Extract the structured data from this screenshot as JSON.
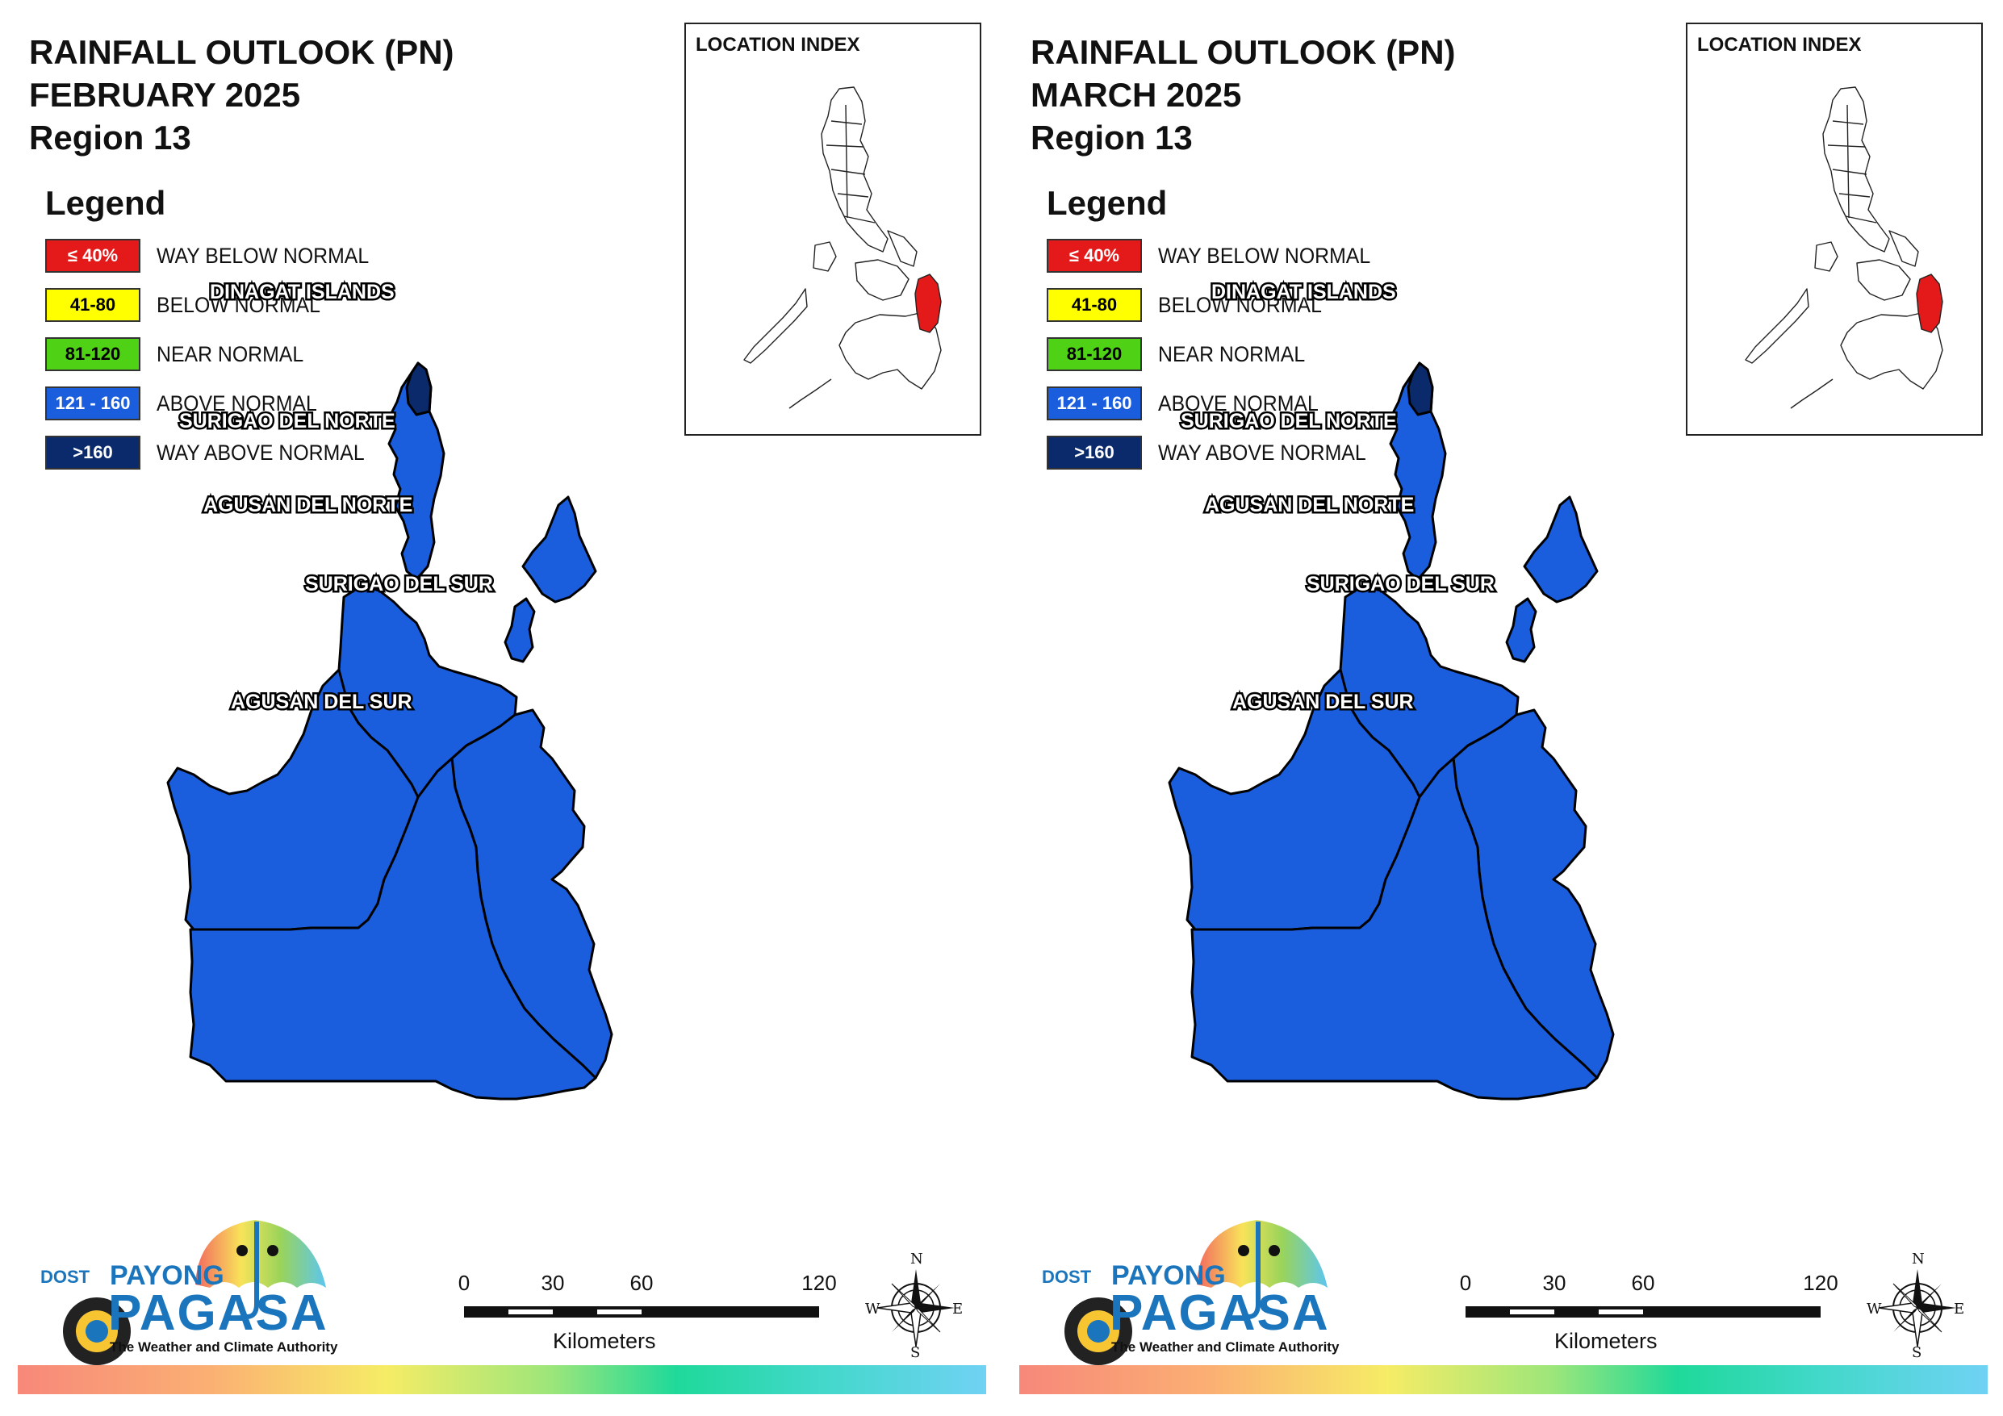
{
  "panels": [
    {
      "title": {
        "line1": "RAINFALL OUTLOOK (PN)",
        "line2": "FEBRUARY 2025",
        "line3": "Region 13"
      },
      "legend": {
        "title": "Legend",
        "items": [
          {
            "range": "≤ 40%",
            "label": "WAY BELOW NORMAL",
            "color": "#e41a1a",
            "text_color": "#ffffff"
          },
          {
            "range": "41-80",
            "label": "BELOW NORMAL",
            "color": "#ffff00",
            "text_color": "#000000"
          },
          {
            "range": "81-120",
            "label": "NEAR NORMAL",
            "color": "#4fd116",
            "text_color": "#000000"
          },
          {
            "range": "121 - 160",
            "label": "ABOVE NORMAL",
            "color": "#1a5ede",
            "text_color": "#ffffff"
          },
          {
            "range": ">160",
            "label": "WAY ABOVE NORMAL",
            "color": "#0b2a6b",
            "text_color": "#ffffff"
          }
        ]
      },
      "provinces": [
        {
          "name": "DINAGAT ISLANDS",
          "category": "ABOVE NORMAL"
        },
        {
          "name": "SURIGAO DEL NORTE",
          "category": "ABOVE NORMAL"
        },
        {
          "name": "AGUSAN DEL NORTE",
          "category": "ABOVE NORMAL"
        },
        {
          "name": "SURIGAO DEL SUR",
          "category": "ABOVE NORMAL"
        },
        {
          "name": "AGUSAN DEL SUR",
          "category": "ABOVE NORMAL"
        }
      ],
      "location_index": {
        "title": "LOCATION INDEX",
        "highlight_color": "#e41a1a"
      },
      "scale": {
        "ticks": [
          "0",
          "30",
          "60",
          "120"
        ],
        "units": "Kilometers"
      },
      "compass": {
        "n": "N",
        "s": "S",
        "e": "E",
        "w": "W"
      },
      "logo": {
        "dost": "DOST",
        "payong": "PAYONG",
        "pagasa": "PAGASA",
        "tagline": "The Weather and Climate Authority"
      }
    },
    {
      "title": {
        "line1": "RAINFALL OUTLOOK (PN)",
        "line2": "MARCH 2025",
        "line3": "Region 13"
      },
      "legend": {
        "title": "Legend",
        "items": [
          {
            "range": "≤ 40%",
            "label": "WAY BELOW NORMAL",
            "color": "#e41a1a",
            "text_color": "#ffffff"
          },
          {
            "range": "41-80",
            "label": "BELOW NORMAL",
            "color": "#ffff00",
            "text_color": "#000000"
          },
          {
            "range": "81-120",
            "label": "NEAR NORMAL",
            "color": "#4fd116",
            "text_color": "#000000"
          },
          {
            "range": "121 - 160",
            "label": "ABOVE NORMAL",
            "color": "#1a5ede",
            "text_color": "#ffffff"
          },
          {
            "range": ">160",
            "label": "WAY ABOVE NORMAL",
            "color": "#0b2a6b",
            "text_color": "#ffffff"
          }
        ]
      },
      "provinces": [
        {
          "name": "DINAGAT ISLANDS",
          "category": "ABOVE NORMAL"
        },
        {
          "name": "SURIGAO DEL NORTE",
          "category": "ABOVE NORMAL"
        },
        {
          "name": "AGUSAN DEL NORTE",
          "category": "ABOVE NORMAL"
        },
        {
          "name": "SURIGAO DEL SUR",
          "category": "ABOVE NORMAL"
        },
        {
          "name": "AGUSAN DEL SUR",
          "category": "ABOVE NORMAL"
        }
      ],
      "location_index": {
        "title": "LOCATION INDEX",
        "highlight_color": "#e41a1a"
      },
      "scale": {
        "ticks": [
          "0",
          "30",
          "60",
          "120"
        ],
        "units": "Kilometers"
      },
      "compass": {
        "n": "N",
        "s": "S",
        "e": "E",
        "w": "W"
      },
      "logo": {
        "dost": "DOST",
        "payong": "PAYONG",
        "pagasa": "PAGASA",
        "tagline": "The Weather and Climate Authority"
      }
    }
  ],
  "colors": {
    "map_fill": "#1a5ede",
    "dinagat_tip": "#0b2a6b",
    "outline": "#000000"
  }
}
